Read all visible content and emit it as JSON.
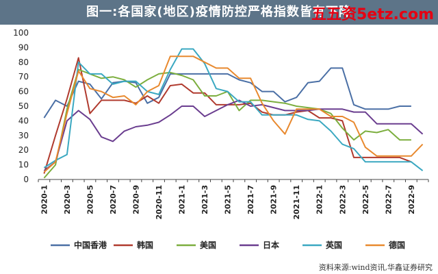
{
  "title": "图一:各国家(地区)疫情防控严格指数皆有下降",
  "watermark": "五五资5etz.com",
  "source": "资料来源:wind资讯,华鑫证券研究",
  "chart_data": {
    "type": "line",
    "title": "图一:各国家(地区)疫情防控严格指数皆有下降",
    "xlabel": "",
    "ylabel": "",
    "ylim": [
      0,
      100
    ],
    "yticks": [
      0,
      10,
      20,
      30,
      40,
      50,
      60,
      70,
      80,
      90,
      100
    ],
    "x": [
      "2020-1",
      "2020-2",
      "2020-3",
      "2020-4",
      "2020-5",
      "2020-6",
      "2020-7",
      "2020-8",
      "2020-9",
      "2020-10",
      "2020-11",
      "2020-12",
      "2021-1",
      "2021-2",
      "2021-3",
      "2021-4",
      "2021-5",
      "2021-6",
      "2021-7",
      "2021-8",
      "2021-9",
      "2021-10",
      "2021-11",
      "2021-12",
      "2022-1",
      "2022-2",
      "2022-3",
      "2022-4",
      "2022-5",
      "2022-6",
      "2022-7",
      "2022-8",
      "2022-9",
      "2022-10"
    ],
    "xtick_labels": [
      "2020-1",
      "2020-3",
      "2020-5",
      "2020-7",
      "2020-9",
      "2020-11",
      "2021-1",
      "2021-3",
      "2021-5",
      "2021-7",
      "2021-9",
      "2021-11",
      "2022-1",
      "2022-3",
      "2022-5",
      "2022-7",
      "2022-9"
    ],
    "grid": false,
    "legend": "bottom",
    "series": [
      {
        "name": "中国香港",
        "color": "#4a6fa5",
        "values": [
          42,
          54,
          50,
          67,
          65,
          55,
          66,
          67,
          66,
          52,
          56,
          72,
          72,
          72,
          72,
          72,
          72,
          68,
          66,
          60,
          60,
          53,
          56,
          66,
          67,
          76,
          76,
          51,
          48,
          48,
          48,
          50,
          50,
          null
        ]
      },
      {
        "name": "韩国",
        "color": "#b03a2e",
        "values": [
          4,
          30,
          55,
          83,
          45,
          54,
          54,
          54,
          52,
          57,
          52,
          64,
          65,
          59,
          59,
          51,
          51,
          51,
          52,
          46,
          44,
          44,
          46,
          47,
          42,
          42,
          40,
          15,
          15,
          15,
          15,
          15,
          12,
          null
        ]
      },
      {
        "name": "美国",
        "color": "#7cae3e",
        "values": [
          1,
          10,
          48,
          75,
          72,
          69,
          70,
          68,
          63,
          68,
          72,
          73,
          71,
          68,
          57,
          57,
          60,
          47,
          54,
          54,
          53,
          52,
          50,
          49,
          48,
          45,
          35,
          27,
          33,
          32,
          34,
          27,
          27,
          null
        ]
      },
      {
        "name": "日本",
        "color": "#6a3d8f",
        "values": [
          6,
          12,
          40,
          47,
          41,
          29,
          26,
          33,
          36,
          37,
          39,
          44,
          50,
          50,
          43,
          47,
          51,
          54,
          50,
          51,
          49,
          47,
          47,
          47,
          48,
          48,
          48,
          46,
          46,
          38,
          38,
          38,
          38,
          31
        ]
      },
      {
        "name": "英国",
        "color": "#3aa8c1",
        "values": [
          8,
          13,
          17,
          80,
          72,
          72,
          65,
          67,
          67,
          60,
          58,
          75,
          89,
          89,
          79,
          62,
          60,
          53,
          53,
          44,
          44,
          44,
          44,
          41,
          40,
          33,
          24,
          21,
          12,
          12,
          12,
          12,
          12,
          6
        ]
      },
      {
        "name": "德国",
        "color": "#e8892e",
        "values": [
          5,
          12,
          45,
          74,
          62,
          60,
          56,
          57,
          51,
          60,
          64,
          84,
          84,
          84,
          80,
          76,
          76,
          69,
          69,
          52,
          40,
          31,
          48,
          48,
          48,
          43,
          43,
          39,
          22,
          16,
          16,
          16,
          16,
          24
        ]
      }
    ]
  }
}
